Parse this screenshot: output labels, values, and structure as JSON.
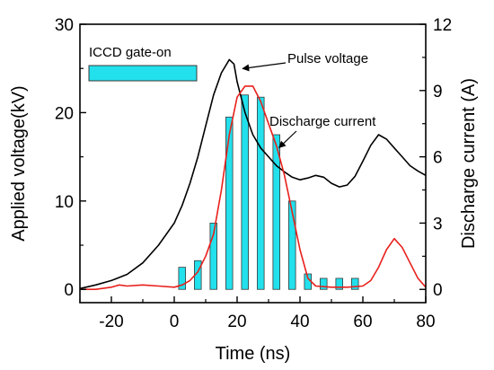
{
  "chart_data": {
    "type": "line",
    "xlabel": "Time (ns)",
    "ylabel_left": "Applied voltage(kV)",
    "ylabel_right": "Discharge current (A)",
    "xlim": [
      -30,
      80
    ],
    "ylim_left": [
      -1.5,
      30
    ],
    "ylim_right": [
      -0.6,
      12
    ],
    "x_ticks": [
      -20,
      0,
      20,
      40,
      60,
      80
    ],
    "y_ticks_left": [
      0,
      10,
      20,
      30
    ],
    "y_ticks_right": [
      0,
      3,
      6,
      9,
      12
    ],
    "grid": false,
    "series": [
      {
        "name": "Pulse voltage",
        "axis": "left",
        "color": "#000000",
        "x": [
          -30,
          -25,
          -20,
          -15,
          -10,
          -5,
          0,
          2.5,
          5,
          7.5,
          10,
          12.5,
          15,
          17.5,
          19,
          20,
          22.5,
          25,
          27.5,
          30,
          32.5,
          35,
          37.5,
          40,
          42.5,
          45,
          47.5,
          50,
          52.5,
          55,
          57.5,
          60,
          62.5,
          65,
          67.5,
          70,
          72.5,
          75,
          77.5,
          80
        ],
        "values": [
          0.1,
          0.5,
          1.0,
          1.7,
          3.0,
          5.0,
          7.5,
          9.5,
          12.0,
          15.0,
          18.5,
          22.0,
          24.5,
          26.0,
          25.5,
          23.5,
          20.0,
          17.5,
          16.0,
          15.0,
          14.0,
          13.3,
          12.7,
          12.4,
          12.6,
          12.9,
          12.7,
          12.0,
          11.6,
          11.8,
          12.8,
          14.5,
          16.3,
          17.5,
          17.0,
          16.0,
          15.0,
          14.0,
          13.4,
          12.9
        ]
      },
      {
        "name": "Discharge current",
        "axis": "right",
        "color": "#e8201c",
        "x": [
          -30,
          -25,
          -20,
          -17.5,
          -15,
          -10,
          -5,
          0,
          2.5,
          5,
          7.5,
          10,
          12.5,
          15,
          17.5,
          20,
          22.5,
          25,
          27.5,
          30,
          32.5,
          35,
          37.5,
          40,
          42.5,
          45,
          50,
          55,
          60,
          62.5,
          65,
          67.5,
          70,
          72.5,
          75,
          77.5,
          80
        ],
        "values": [
          0,
          0,
          0.1,
          0.2,
          0.15,
          0.2,
          0.15,
          0.1,
          0.2,
          0.4,
          0.8,
          1.5,
          2.5,
          4.5,
          7.0,
          8.7,
          9.2,
          9.2,
          8.5,
          7.5,
          6.5,
          5.2,
          3.5,
          1.8,
          0.5,
          0.15,
          0.1,
          0.1,
          0.15,
          0.4,
          1.0,
          1.8,
          2.3,
          1.9,
          1.2,
          0.5,
          0.1
        ]
      }
    ],
    "gate_bars": {
      "axis": "right",
      "color": "#22e0ec",
      "width_ns": 2.2,
      "x": [
        2.5,
        7.5,
        12.5,
        17.5,
        22.5,
        27.5,
        32.5,
        37.5,
        42.5,
        47.5,
        52.5,
        57.5
      ],
      "values": [
        1.0,
        1.3,
        3.0,
        7.8,
        8.8,
        8.7,
        7.0,
        4.0,
        0.7,
        0.5,
        0.5,
        0.5
      ]
    },
    "legend": {
      "label": "ICCD gate-on",
      "color": "#22e0ec",
      "position": "top-left"
    },
    "annotations": [
      {
        "text": "Pulse voltage",
        "target_x": 19.5,
        "target_y_left": 26.0
      },
      {
        "text": "Discharge current",
        "target_x": 32.5,
        "target_y_right": 6.5
      }
    ]
  }
}
